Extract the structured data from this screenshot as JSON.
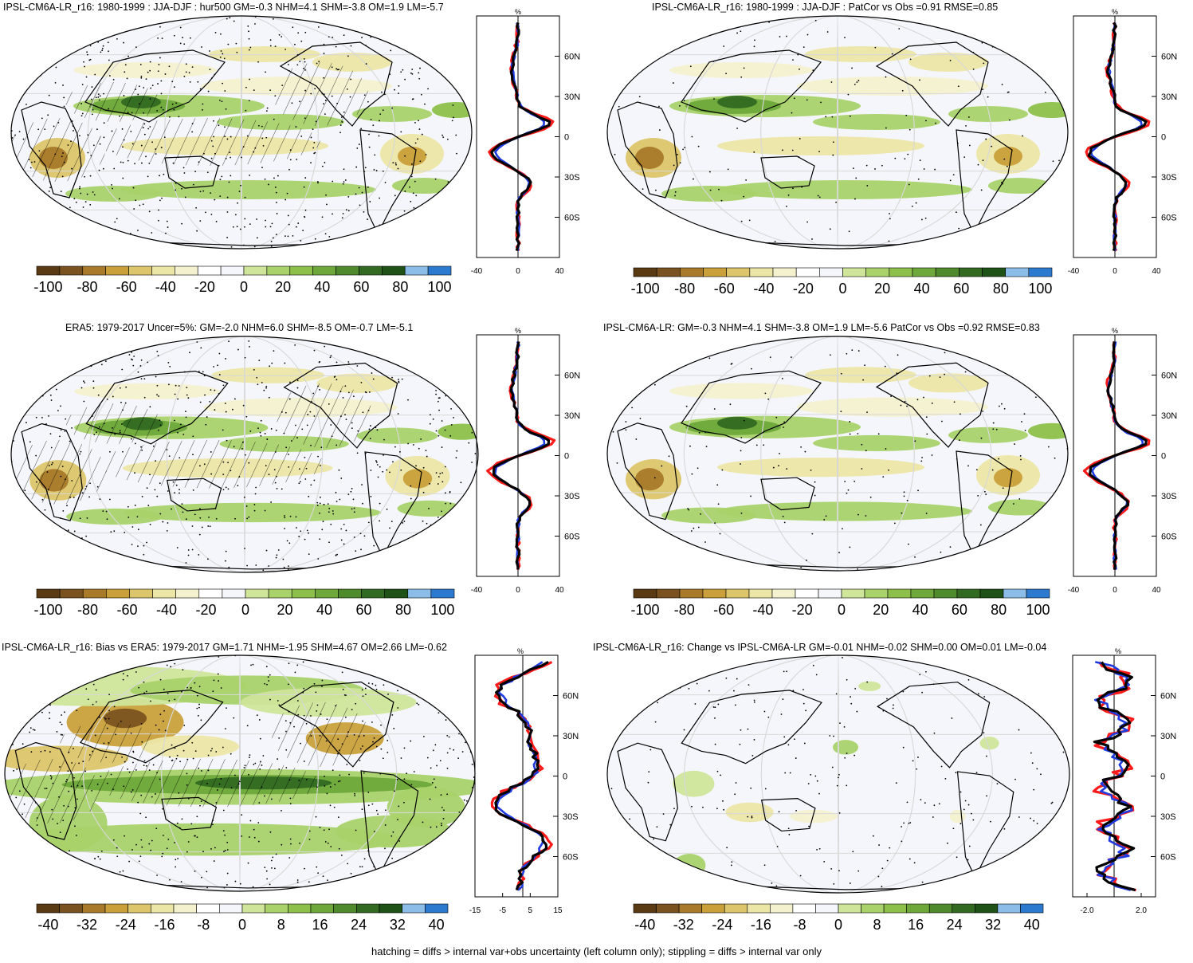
{
  "footer": "hatching = diffs > internal var+obs uncertainty (left column only); stippling = diffs > internal var only",
  "unit_symbol": "%",
  "colorbar_colors": [
    "#5a3a12",
    "#7a5220",
    "#a87a2a",
    "#c9a03a",
    "#dcc56a",
    "#ece6a6",
    "#f4f1cf",
    "#ffffff",
    "#f4f6fb",
    "#cfe59a",
    "#a9d26a",
    "#8cc04a",
    "#6ea83a",
    "#4f8a2c",
    "#326a22",
    "#1e5216",
    "#8bbde8",
    "#2c7ad0"
  ],
  "panels": [
    {
      "id": "p1",
      "title": "IPSL-CM6A-LR_r16: 1980-1999 : JJA-DJF : hur500 GM=-0.3 NHM=4.1 SHM=-3.8 OM=1.9 LM=-5.7",
      "colorbar_labels": [
        "-100",
        "-80",
        "-60",
        "-40",
        "-20",
        "0",
        "20",
        "40",
        "60",
        "80",
        "100"
      ],
      "profile_xticks": [
        "-40",
        "0",
        "40"
      ],
      "profile_yticks": [
        "60N",
        "30N",
        "0",
        "30S",
        "60S"
      ],
      "hatching": true
    },
    {
      "id": "p2",
      "title": "IPSL-CM6A-LR_r16: 1980-1999 : JJA-DJF : PatCor vs Obs =0.91 RMSE=0.85",
      "colorbar_labels": [
        "-100",
        "-80",
        "-60",
        "-40",
        "-20",
        "0",
        "20",
        "40",
        "60",
        "80",
        "100"
      ],
      "profile_xticks": [
        "-40",
        "0",
        "40"
      ],
      "profile_yticks": [
        "60N",
        "30N",
        "0",
        "30S",
        "60S"
      ],
      "hatching": false
    },
    {
      "id": "p3",
      "title": "ERA5: 1979-2017 Uncer=5%: GM=-2.0 NHM=6.0 SHM=-8.5 OM=-0.7 LM=-5.1",
      "colorbar_labels": [
        "-100",
        "-80",
        "-60",
        "-40",
        "-20",
        "0",
        "20",
        "40",
        "60",
        "80",
        "100"
      ],
      "profile_xticks": [
        "-40",
        "0",
        "40"
      ],
      "profile_yticks": [
        "60N",
        "30N",
        "0",
        "30S",
        "60S"
      ],
      "hatching": true
    },
    {
      "id": "p4",
      "title": "IPSL-CM6A-LR: GM=-0.3 NHM=4.1 SHM=-3.8 OM=1.9 LM=-5.6 PatCor vs Obs =0.92 RMSE=0.83",
      "colorbar_labels": [
        "-100",
        "-80",
        "-60",
        "-40",
        "-20",
        "0",
        "20",
        "40",
        "60",
        "80",
        "100"
      ],
      "profile_xticks": [
        "-40",
        "0",
        "40"
      ],
      "profile_yticks": [
        "60N",
        "30N",
        "0",
        "30S",
        "60S"
      ],
      "hatching": false
    },
    {
      "id": "p5",
      "title": "IPSL-CM6A-LR_r16: Bias vs ERA5: 1979-2017 GM=1.71 NHM=-1.95 SHM=4.67 OM=2.66 LM=-0.62",
      "colorbar_labels": [
        "-40",
        "-32",
        "-24",
        "-16",
        "-8",
        "0",
        "8",
        "16",
        "24",
        "32",
        "40"
      ],
      "profile_xticks": [
        "-15",
        "-5",
        "5",
        "15"
      ],
      "profile_yticks": [
        "60N",
        "30N",
        "0",
        "30S",
        "60S"
      ],
      "hatching": true
    },
    {
      "id": "p6",
      "title": "IPSL-CM6A-LR_r16: Change vs IPSL-CM6A-LR GM=-0.01 NHM=-0.02 SHM=0.00 OM=0.01 LM=-0.04",
      "colorbar_labels": [
        "-40",
        "-32",
        "-24",
        "-16",
        "-8",
        "0",
        "8",
        "16",
        "24",
        "32",
        "40"
      ],
      "profile_xticks": [
        "-2.0",
        "2.0"
      ],
      "profile_yticks": [
        "60N",
        "30N",
        "0",
        "30S",
        "60S"
      ],
      "hatching": false
    }
  ]
}
